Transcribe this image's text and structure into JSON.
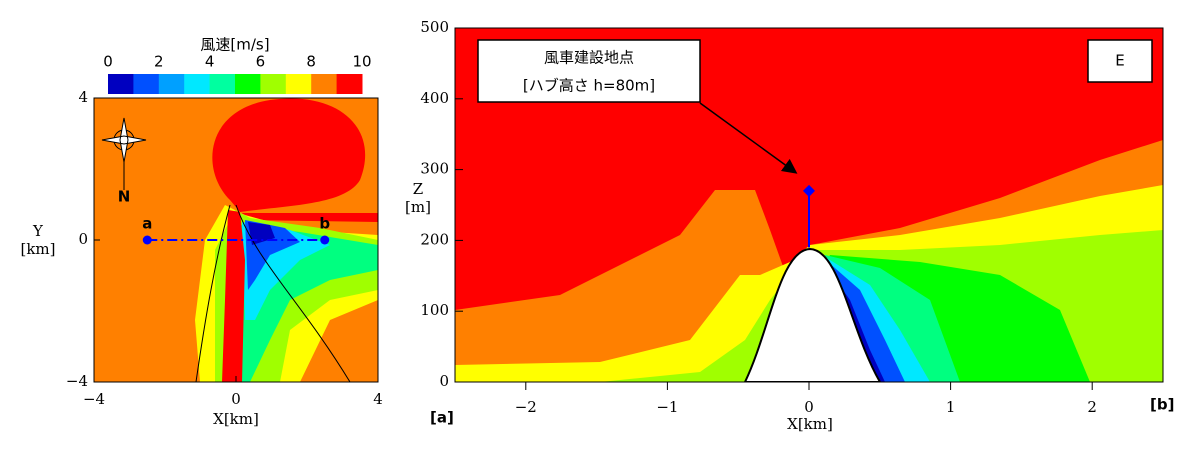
{
  "colorbar": {
    "title": "風速[m/s]",
    "ticks": [
      0,
      2,
      4,
      6,
      8,
      10
    ],
    "lim": [
      0,
      10
    ],
    "colors": [
      "#0000c0",
      "#0050ff",
      "#00a0ff",
      "#00e8ff",
      "#00ffa0",
      "#00ff00",
      "#a0ff00",
      "#ffff00",
      "#ff8000",
      "#ff0000"
    ]
  },
  "map": {
    "xlabel": "X[km]",
    "ylabel": "Y\n[km]",
    "xlim": [
      -4,
      4
    ],
    "ylim": [
      -4,
      4
    ],
    "xticks": [
      {
        "value": -4,
        "label": "−4"
      },
      0,
      4
    ],
    "yticks": [
      {
        "value": -4,
        "label": "−4"
      },
      0,
      4
    ],
    "points": [
      {
        "name": "a",
        "x": -2.5,
        "y": 0
      },
      {
        "name": "b",
        "x": 2.5,
        "y": 0
      }
    ],
    "north": "N"
  },
  "section": {
    "xlabel": "X[km]",
    "ylabel": "Z\n[m]",
    "panel": "E",
    "xlim": [
      -2.5,
      2.5
    ],
    "ylim": [
      0,
      500
    ],
    "xticks": [
      {
        "value": -2,
        "label": "−2"
      },
      {
        "value": -1,
        "label": "−1"
      },
      0,
      1,
      2
    ],
    "yticks": [
      0,
      100,
      200,
      300,
      400,
      500
    ],
    "end_labels": [
      "[a]",
      "[b]"
    ],
    "annotation": [
      "風車建設地点",
      "[ハブ高さ h=80m]"
    ],
    "turbine": {
      "x": 0,
      "base": 190,
      "top": 270
    }
  }
}
